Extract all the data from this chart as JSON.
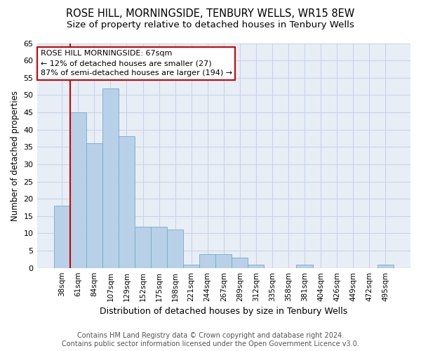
{
  "title1": "ROSE HILL, MORNINGSIDE, TENBURY WELLS, WR15 8EW",
  "title2": "Size of property relative to detached houses in Tenbury Wells",
  "xlabel": "Distribution of detached houses by size in Tenbury Wells",
  "ylabel": "Number of detached properties",
  "categories": [
    "38sqm",
    "61sqm",
    "84sqm",
    "107sqm",
    "129sqm",
    "152sqm",
    "175sqm",
    "198sqm",
    "221sqm",
    "244sqm",
    "267sqm",
    "289sqm",
    "312sqm",
    "335sqm",
    "358sqm",
    "381sqm",
    "404sqm",
    "426sqm",
    "449sqm",
    "472sqm",
    "495sqm"
  ],
  "values": [
    18,
    45,
    36,
    52,
    38,
    12,
    12,
    11,
    1,
    4,
    4,
    3,
    1,
    0,
    0,
    1,
    0,
    0,
    0,
    0,
    1
  ],
  "bar_color": "#b8d0e8",
  "bar_edge_color": "#7aaac8",
  "vline_color": "#cc0000",
  "vline_x_index": 1,
  "annotation_text_line1": "ROSE HILL MORNINGSIDE: 67sqm",
  "annotation_text_line2": "← 12% of detached houses are smaller (27)",
  "annotation_text_line3": "87% of semi-detached houses are larger (194) →",
  "annotation_box_facecolor": "white",
  "annotation_box_edgecolor": "#cc0000",
  "ylim": [
    0,
    65
  ],
  "yticks": [
    0,
    5,
    10,
    15,
    20,
    25,
    30,
    35,
    40,
    45,
    50,
    55,
    60,
    65
  ],
  "grid_color": "#c8d4e8",
  "background_color": "#e8eef6",
  "footer_line1": "Contains HM Land Registry data © Crown copyright and database right 2024.",
  "footer_line2": "Contains public sector information licensed under the Open Government Licence v3.0.",
  "title1_fontsize": 10.5,
  "title2_fontsize": 9.5,
  "xlabel_fontsize": 9,
  "ylabel_fontsize": 8.5,
  "footer_fontsize": 7
}
